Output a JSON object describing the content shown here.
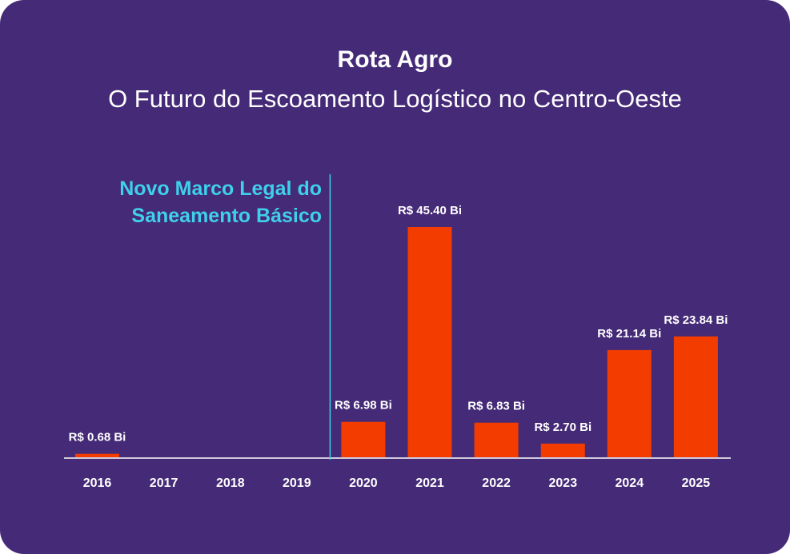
{
  "header": {
    "title": "Rota Agro",
    "subtitle": "O Futuro do Escoamento Logístico no Centro-Oeste"
  },
  "annotation": {
    "lines": [
      "Novo Marco Legal do",
      "Saneamento Básico"
    ],
    "at_year": "2019",
    "color": "#3fd0ea"
  },
  "colors": {
    "background": "#452a77",
    "bar": "#f23c00",
    "axis": "#ffffff",
    "marker_line": "#3fd0ea"
  },
  "chart_data": {
    "type": "bar",
    "categories": [
      "2016",
      "2017",
      "2018",
      "2019",
      "2020",
      "2021",
      "2022",
      "2023",
      "2024",
      "2025"
    ],
    "values": [
      0.68,
      null,
      null,
      null,
      6.98,
      45.4,
      6.83,
      2.7,
      21.14,
      23.84
    ],
    "data_labels": [
      "R$ 0.68 Bi",
      "",
      "",
      "",
      "R$ 6.98 Bi",
      "R$ 45.40 Bi",
      "R$ 6.83 Bi",
      "R$ 2.70 Bi",
      "R$ 21.14 Bi",
      "R$ 23.84 Bi"
    ],
    "ylim": [
      0,
      45.4
    ],
    "grid": false,
    "legend": "none"
  }
}
